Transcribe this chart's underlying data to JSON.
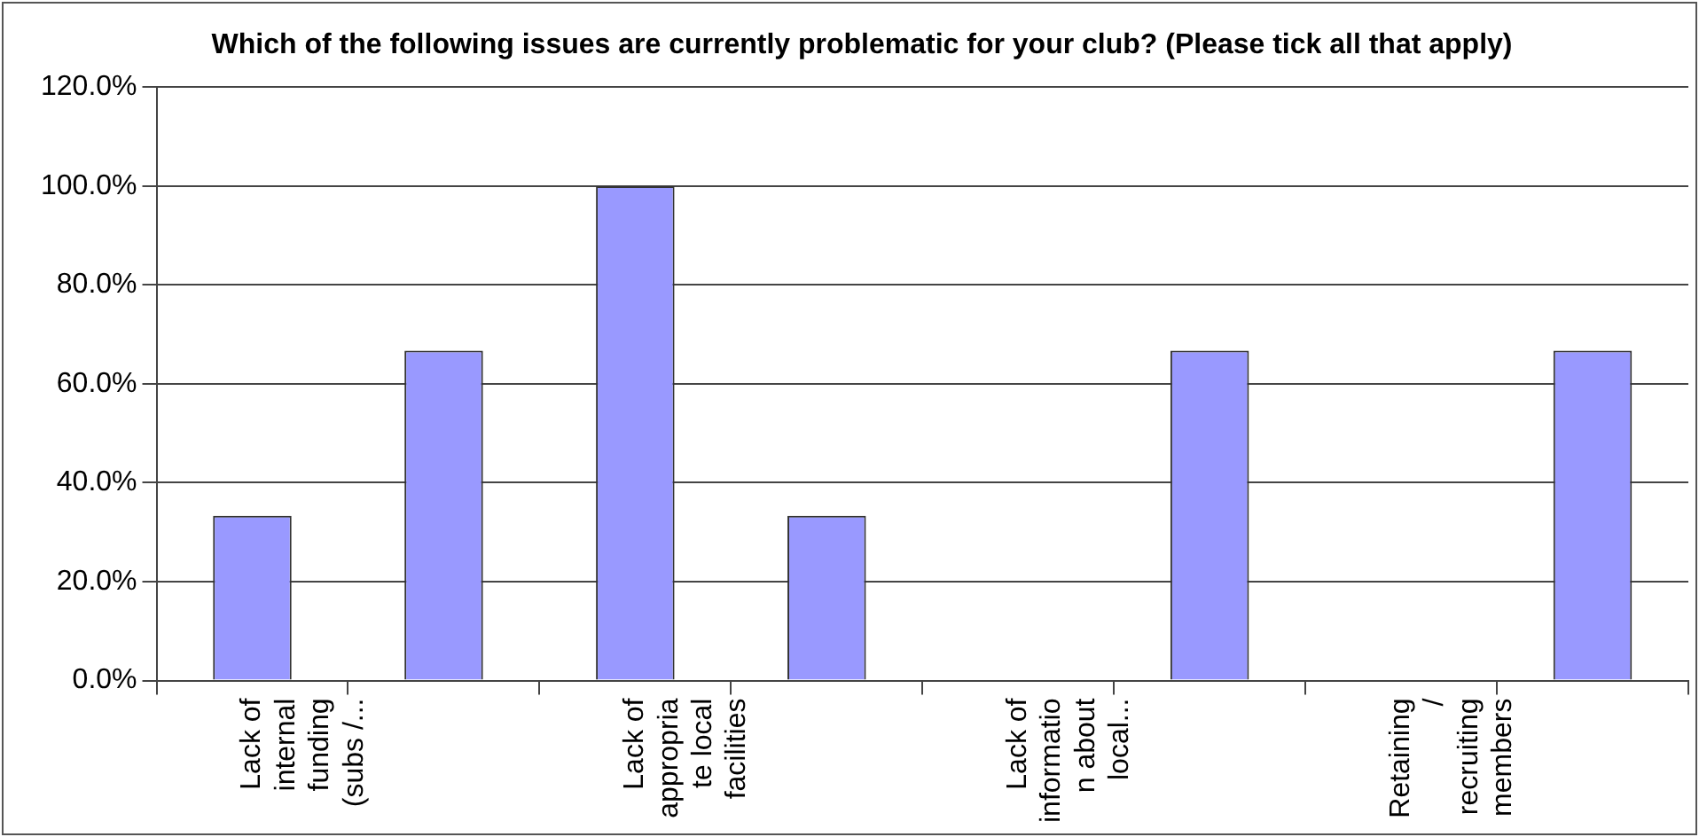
{
  "chart_data": {
    "type": "bar",
    "title": "Which of the following issues are currently problematic for your club? (Please tick all that apply)",
    "categories": [
      "Lack of internal funding (subs /...",
      null,
      "Lack of appropriate local facilities",
      null,
      "Lack of information about local...",
      null,
      "Retaining / recruiting members",
      null
    ],
    "values": [
      33.3,
      66.7,
      100,
      33.3,
      0,
      66.7,
      0,
      66.7
    ],
    "color": "#9999ff",
    "ylim": [
      0,
      120
    ],
    "yticks": [
      {
        "value": 0,
        "label": "0.0%"
      },
      {
        "value": 20,
        "label": "20.0%"
      },
      {
        "value": 40,
        "label": "40.0%"
      },
      {
        "value": 60,
        "label": "60.0%"
      },
      {
        "value": 80,
        "label": "80.0%"
      },
      {
        "value": 100,
        "label": "100.0%"
      },
      {
        "value": 120,
        "label": "120.0%"
      }
    ],
    "grid": "y",
    "legend": false
  }
}
